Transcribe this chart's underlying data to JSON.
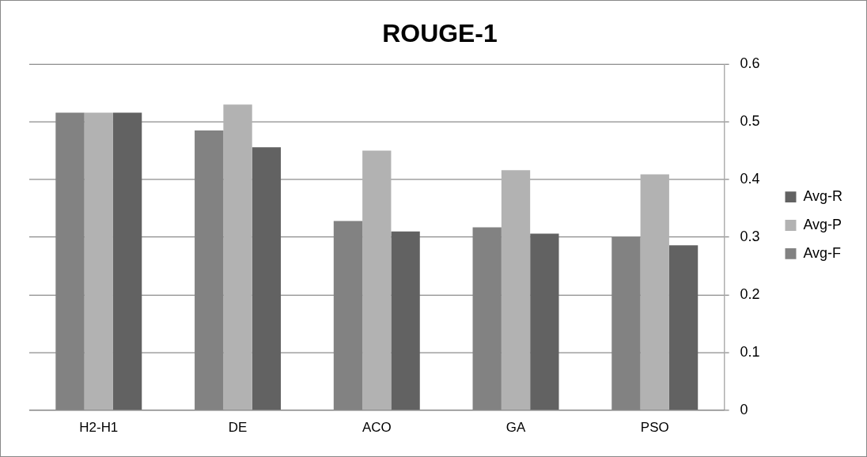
{
  "chart_data": {
    "type": "bar",
    "title": "ROUGE-1",
    "categories": [
      "H2-H1",
      "DE",
      "ACO",
      "GA",
      "PSO"
    ],
    "series": [
      {
        "name": "Avg-F",
        "color": "#828282",
        "values": [
          0.516,
          0.485,
          0.328,
          0.317,
          0.3
        ]
      },
      {
        "name": "Avg-P",
        "color": "#b2b2b2",
        "values": [
          0.516,
          0.53,
          0.45,
          0.416,
          0.409
        ]
      },
      {
        "name": "Avg-R",
        "color": "#626262",
        "values": [
          0.516,
          0.456,
          0.31,
          0.306,
          0.286
        ]
      }
    ],
    "ylim": [
      0,
      0.6
    ],
    "yticks": [
      0,
      0.1,
      0.2,
      0.3,
      0.4,
      0.5,
      0.6
    ],
    "grid": "y",
    "legend": "right"
  }
}
